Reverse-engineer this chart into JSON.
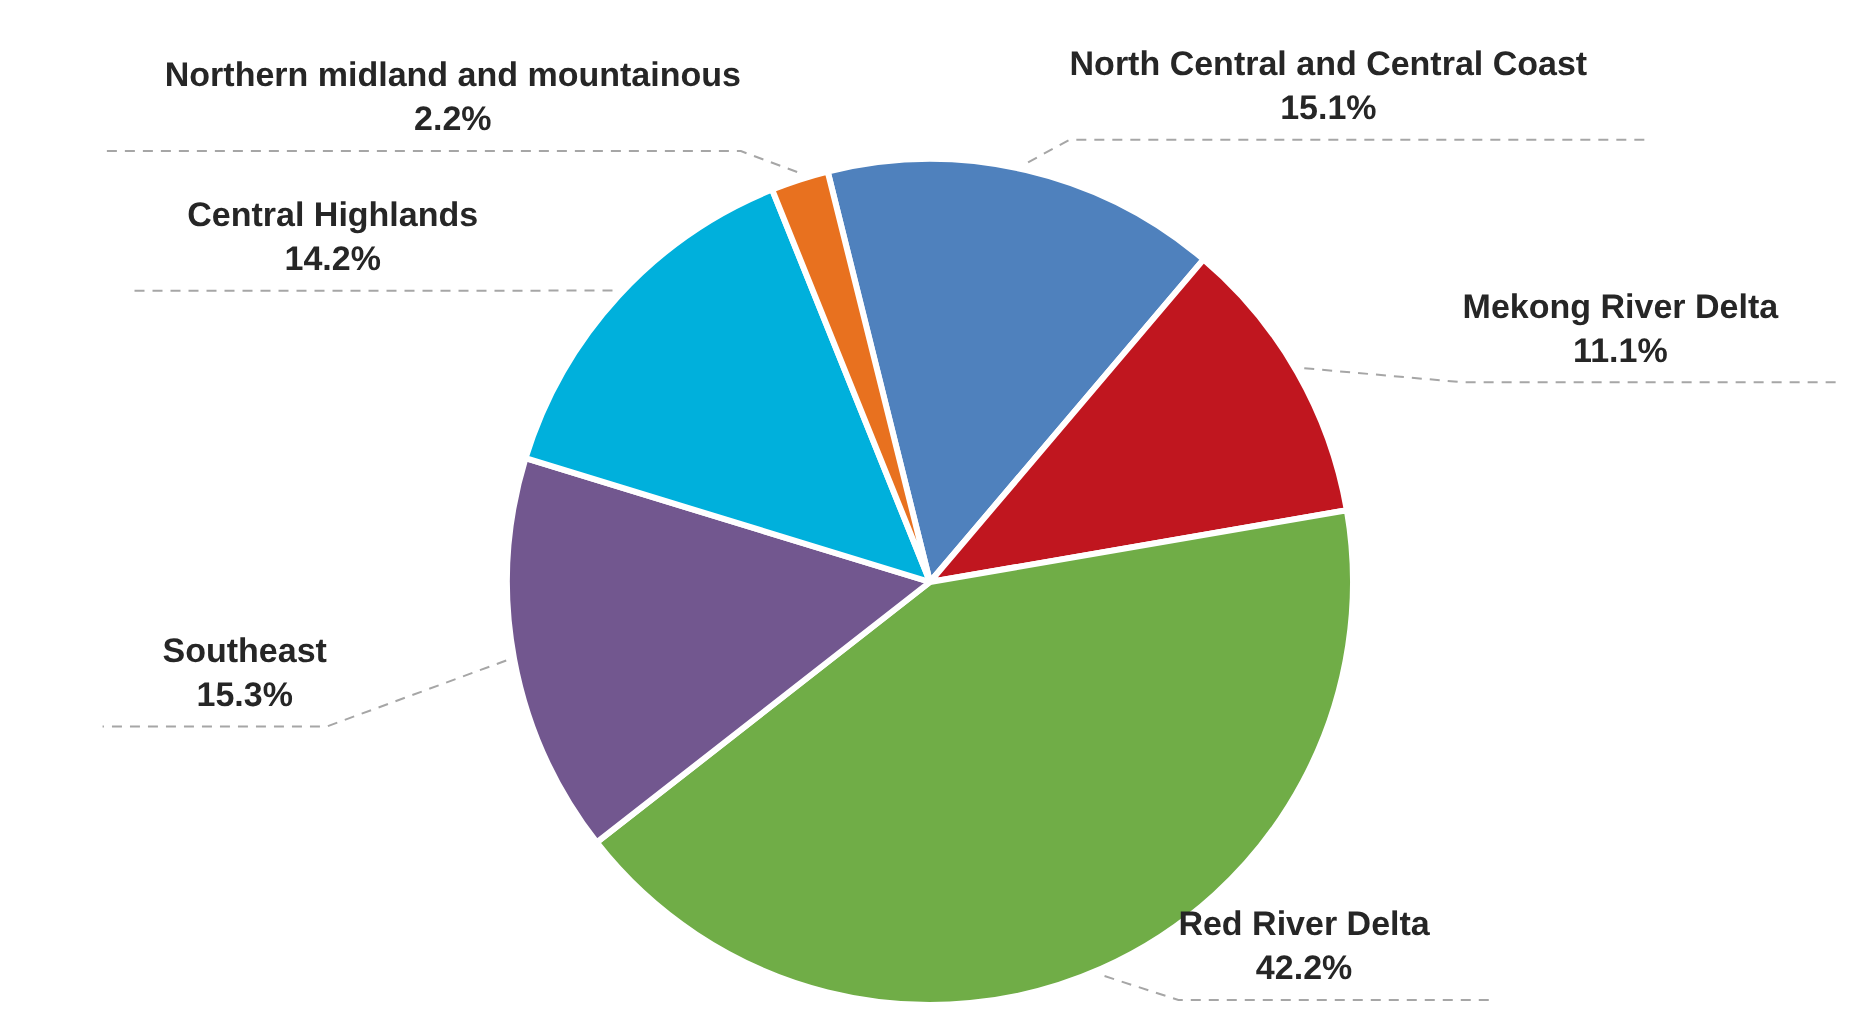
{
  "chart_data": {
    "type": "pie",
    "categories": [
      "North Central and Central Coast",
      "Mekong River Delta",
      "Red River Delta",
      "Southeast",
      "Central Highlands",
      "Northern midland and mountainous"
    ],
    "values": [
      15.1,
      11.1,
      42.2,
      15.3,
      14.2,
      2.2
    ],
    "colors": [
      "#4f81bd",
      "#c0161f",
      "#70ad47",
      "#72578f",
      "#00b0dc",
      "#e8711f"
    ],
    "value_labels": [
      "15.1%",
      "11.1%",
      "42.2%",
      "15.3%",
      "14.2%",
      "2.2%"
    ],
    "legend": false
  }
}
